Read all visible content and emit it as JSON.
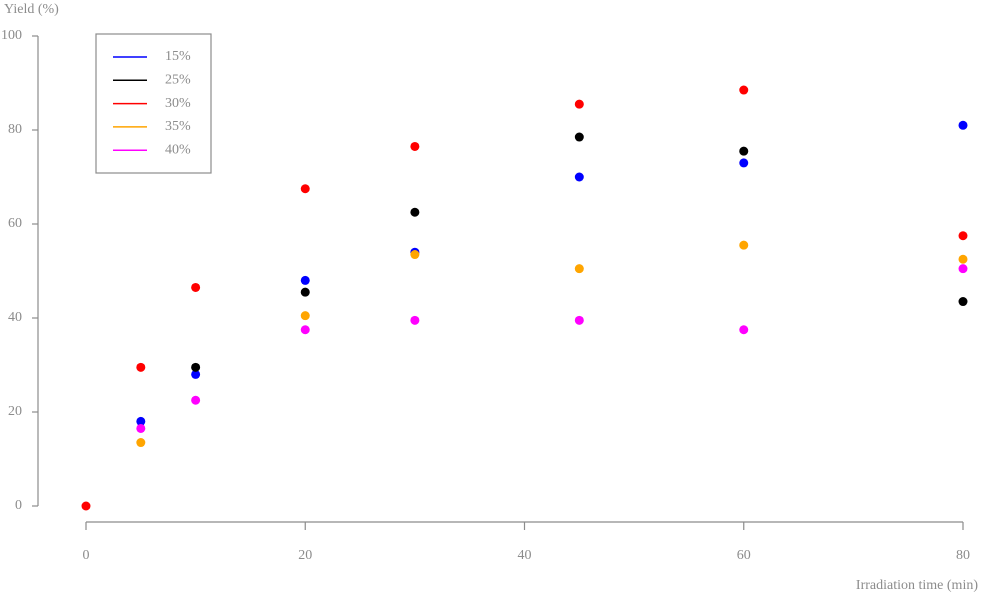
{
  "chart_data": {
    "type": "scatter",
    "x_label": "Irradiation time (min)",
    "y_label": "Yield (%)",
    "x": [
      0,
      5,
      10,
      20,
      30,
      45,
      60,
      80
    ],
    "series": [
      {
        "name": "15%",
        "color": "#0000ff",
        "values": [
          null,
          18,
          28,
          48,
          54,
          70,
          73,
          81
        ]
      },
      {
        "name": "25%",
        "color": "#000000",
        "values": [
          null,
          null,
          29.5,
          45.5,
          62.5,
          78.5,
          75.5,
          43.5
        ]
      },
      {
        "name": "30%",
        "color": "#ff0000",
        "values": [
          0,
          29.5,
          46.5,
          67.5,
          76.5,
          85.5,
          88.5,
          57.5
        ]
      },
      {
        "name": "35%",
        "color": "#ffa500",
        "values": [
          null,
          13.5,
          null,
          40.5,
          53.5,
          50.5,
          55.5,
          52.5
        ]
      },
      {
        "name": "40%",
        "color": "#ff00ff",
        "values": [
          null,
          16.5,
          22.5,
          37.5,
          39.5,
          39.5,
          37.5,
          50.5
        ]
      }
    ],
    "xlim": [
      0,
      80
    ],
    "xticks": [
      0,
      20,
      40,
      60,
      80
    ],
    "ylim": [
      0,
      100
    ],
    "yticks": [
      0,
      20,
      40,
      60,
      80,
      100
    ],
    "legend": "upper-left"
  }
}
